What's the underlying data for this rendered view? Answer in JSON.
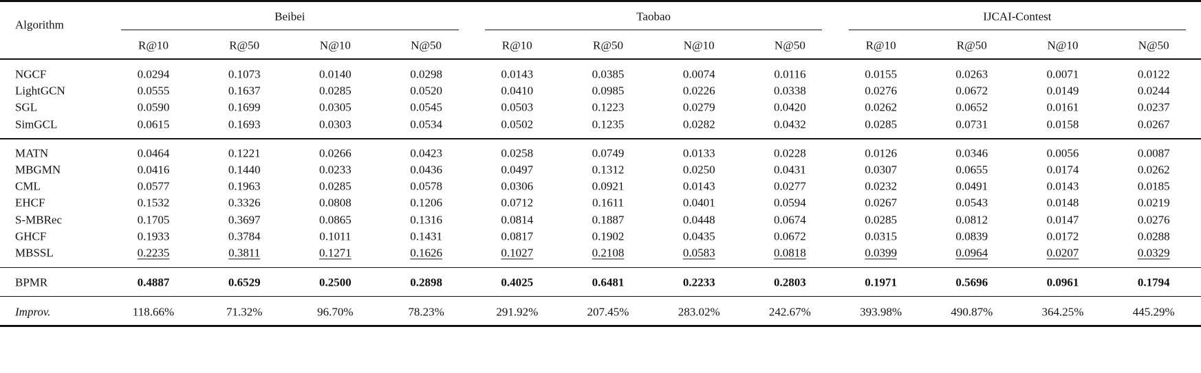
{
  "header": {
    "first": "Algorithm",
    "datasets": [
      {
        "name": "Beibei",
        "metrics": [
          "R@10",
          "R@50",
          "N@10",
          "N@50"
        ]
      },
      {
        "name": "Taobao",
        "metrics": [
          "R@10",
          "R@50",
          "N@10",
          "N@50"
        ]
      },
      {
        "name": "IJCAI-Contest",
        "metrics": [
          "R@10",
          "R@50",
          "N@10",
          "N@50"
        ]
      }
    ]
  },
  "groups": [
    [
      {
        "name": "NGCF",
        "values": [
          "0.0294",
          "0.1073",
          "0.0140",
          "0.0298",
          "0.0143",
          "0.0385",
          "0.0074",
          "0.0116",
          "0.0155",
          "0.0263",
          "0.0071",
          "0.0122"
        ]
      },
      {
        "name": "LightGCN",
        "values": [
          "0.0555",
          "0.1637",
          "0.0285",
          "0.0520",
          "0.0410",
          "0.0985",
          "0.0226",
          "0.0338",
          "0.0276",
          "0.0672",
          "0.0149",
          "0.0244"
        ]
      },
      {
        "name": "SGL",
        "values": [
          "0.0590",
          "0.1699",
          "0.0305",
          "0.0545",
          "0.0503",
          "0.1223",
          "0.0279",
          "0.0420",
          "0.0262",
          "0.0652",
          "0.0161",
          "0.0237"
        ]
      },
      {
        "name": "SimGCL",
        "values": [
          "0.0615",
          "0.1693",
          "0.0303",
          "0.0534",
          "0.0502",
          "0.1235",
          "0.0282",
          "0.0432",
          "0.0285",
          "0.0731",
          "0.0158",
          "0.0267"
        ]
      }
    ],
    [
      {
        "name": "MATN",
        "values": [
          "0.0464",
          "0.1221",
          "0.0266",
          "0.0423",
          "0.0258",
          "0.0749",
          "0.0133",
          "0.0228",
          "0.0126",
          "0.0346",
          "0.0056",
          "0.0087"
        ]
      },
      {
        "name": "MBGMN",
        "values": [
          "0.0416",
          "0.1440",
          "0.0233",
          "0.0436",
          "0.0497",
          "0.1312",
          "0.0250",
          "0.0431",
          "0.0307",
          "0.0655",
          "0.0174",
          "0.0262"
        ]
      },
      {
        "name": "CML",
        "values": [
          "0.0577",
          "0.1963",
          "0.0285",
          "0.0578",
          "0.0306",
          "0.0921",
          "0.0143",
          "0.0277",
          "0.0232",
          "0.0491",
          "0.0143",
          "0.0185"
        ]
      },
      {
        "name": "EHCF",
        "values": [
          "0.1532",
          "0.3326",
          "0.0808",
          "0.1206",
          "0.0712",
          "0.1611",
          "0.0401",
          "0.0594",
          "0.0267",
          "0.0543",
          "0.0148",
          "0.0219"
        ]
      },
      {
        "name": "S-MBRec",
        "values": [
          "0.1705",
          "0.3697",
          "0.0865",
          "0.1316",
          "0.0814",
          "0.1887",
          "0.0448",
          "0.0674",
          "0.0285",
          "0.0812",
          "0.0147",
          "0.0276"
        ]
      },
      {
        "name": "GHCF",
        "values": [
          "0.1933",
          "0.3784",
          "0.1011",
          "0.1431",
          "0.0817",
          "0.1902",
          "0.0435",
          "0.0672",
          "0.0315",
          "0.0839",
          "0.0172",
          "0.0288"
        ]
      },
      {
        "name": "MBSSL",
        "style": "underline",
        "values": [
          "0.2235",
          "0.3811",
          "0.1271",
          "0.1626",
          "0.1027",
          "0.2108",
          "0.0583",
          "0.0818",
          "0.0399",
          "0.0964",
          "0.0207",
          "0.0329"
        ]
      }
    ],
    [
      {
        "name": "BPMR",
        "style": "bold",
        "values": [
          "0.4887",
          "0.6529",
          "0.2500",
          "0.2898",
          "0.4025",
          "0.6481",
          "0.2233",
          "0.2803",
          "0.1971",
          "0.5696",
          "0.0961",
          "0.1794"
        ]
      }
    ],
    [
      {
        "name": "Improv.",
        "style": "italic-name",
        "values": [
          "118.66%",
          "71.32%",
          "96.70%",
          "78.23%",
          "291.92%",
          "207.45%",
          "283.02%",
          "242.67%",
          "393.98%",
          "490.87%",
          "364.25%",
          "445.29%"
        ]
      }
    ]
  ]
}
